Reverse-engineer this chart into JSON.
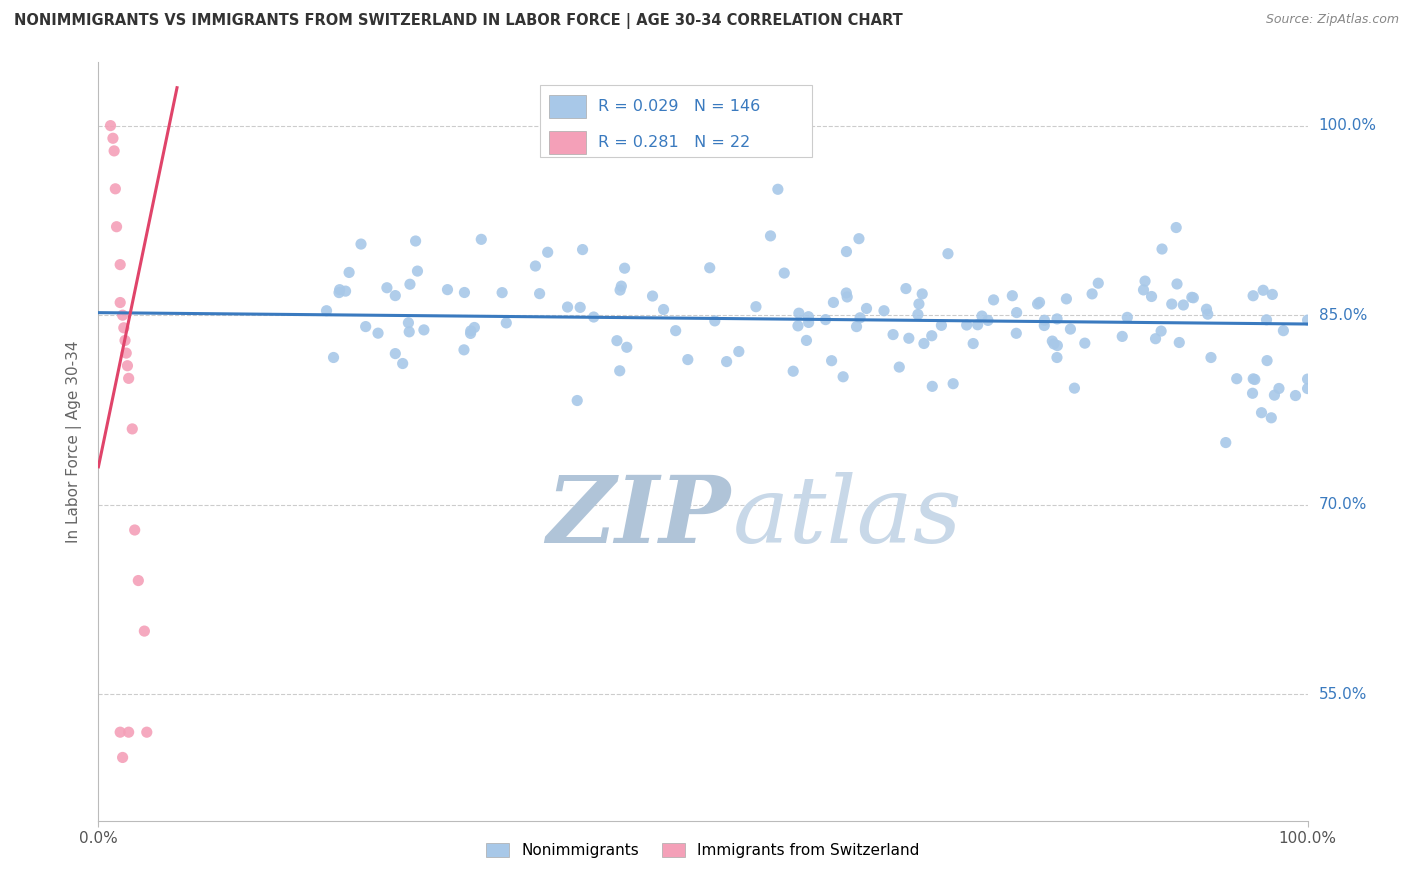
{
  "title": "NONIMMIGRANTS VS IMMIGRANTS FROM SWITZERLAND IN LABOR FORCE | AGE 30-34 CORRELATION CHART",
  "source": "Source: ZipAtlas.com",
  "ylabel": "In Labor Force | Age 30-34",
  "xlim": [
    0.0,
    1.0
  ],
  "ylim": [
    0.45,
    1.05
  ],
  "yticks": [
    0.55,
    0.7,
    0.85,
    1.0
  ],
  "ytick_labels": [
    "55.0%",
    "70.0%",
    "85.0%",
    "100.0%"
  ],
  "xtick_labels": [
    "0.0%",
    "100.0%"
  ],
  "blue_R": 0.029,
  "blue_N": 146,
  "pink_R": 0.281,
  "pink_N": 22,
  "blue_color": "#a8c8e8",
  "pink_color": "#f4a0b8",
  "blue_line_color": "#3a7abf",
  "pink_line_color": "#e0446a",
  "legend_text_color": "#3a7abf",
  "right_label_color": "#3a7abf",
  "title_color": "#333333",
  "background_color": "#ffffff",
  "grid_color": "#cccccc",
  "blue_trendline_x": [
    0.0,
    1.0
  ],
  "blue_trendline_y": [
    0.852,
    0.843
  ],
  "pink_trendline_x": [
    0.0,
    0.065
  ],
  "pink_trendline_y": [
    0.73,
    1.03
  ],
  "watermark_zip": "ZIP",
  "watermark_atlas": "atlas",
  "watermark_zip_color": "#b0c4d8",
  "watermark_atlas_color": "#c8d8e8"
}
